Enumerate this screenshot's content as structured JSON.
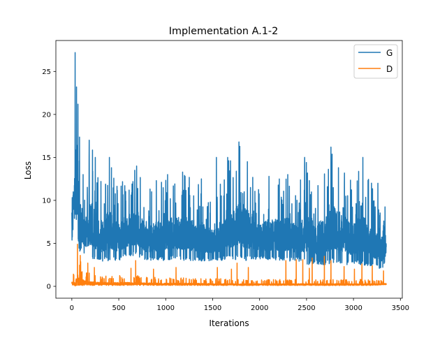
{
  "chart_data": {
    "type": "line",
    "title": "Implementation A.1-2",
    "xlabel": "Iterations",
    "ylabel": "Loss",
    "xlim": [
      -170,
      3520
    ],
    "ylim": [
      -1.38,
      28.6
    ],
    "xticks": [
      0,
      500,
      1000,
      1500,
      2000,
      2500,
      3000,
      3500
    ],
    "yticks": [
      0,
      5,
      10,
      15,
      20,
      25
    ],
    "xtick_labels": [
      "0",
      "500",
      "1000",
      "1500",
      "2000",
      "2500",
      "3000",
      "3500"
    ],
    "ytick_labels": [
      "0",
      "5",
      "10",
      "15",
      "20",
      "25"
    ],
    "grid": false,
    "legend_position": "upper right",
    "n_points": 3350,
    "series": [
      {
        "name": "G",
        "color": "#1f77b4",
        "band": [
          [
            0,
            5.0,
            9.5
          ],
          [
            20,
            7.5,
            14.0
          ],
          [
            40,
            8.0,
            27.2
          ],
          [
            60,
            5.5,
            23.2
          ],
          [
            80,
            4.0,
            21.2
          ],
          [
            100,
            4.0,
            13.0
          ],
          [
            150,
            3.5,
            12.5
          ],
          [
            200,
            3.2,
            17.0
          ],
          [
            300,
            2.8,
            12.2
          ],
          [
            400,
            3.0,
            15.0
          ],
          [
            500,
            3.0,
            11.5
          ],
          [
            600,
            3.5,
            13.5
          ],
          [
            700,
            3.5,
            14.0
          ],
          [
            800,
            3.0,
            11.0
          ],
          [
            900,
            3.0,
            12.3
          ],
          [
            1000,
            3.0,
            13.0
          ],
          [
            1100,
            3.2,
            12.7
          ],
          [
            1200,
            3.0,
            13.3
          ],
          [
            1300,
            3.0,
            12.5
          ],
          [
            1400,
            2.9,
            12.0
          ],
          [
            1500,
            3.0,
            10.0
          ],
          [
            1600,
            3.0,
            12.5
          ],
          [
            1650,
            3.0,
            15.0
          ],
          [
            1700,
            3.2,
            14.6
          ],
          [
            1800,
            3.0,
            16.8
          ],
          [
            1900,
            3.0,
            14.5
          ],
          [
            2000,
            3.2,
            11.0
          ],
          [
            2100,
            3.0,
            12.8
          ],
          [
            2200,
            3.0,
            12.5
          ],
          [
            2300,
            2.9,
            13.0
          ],
          [
            2400,
            3.0,
            11.2
          ],
          [
            2500,
            2.5,
            15.0
          ],
          [
            2600,
            2.6,
            12.0
          ],
          [
            2700,
            2.5,
            13.5
          ],
          [
            2800,
            2.8,
            16.2
          ],
          [
            2900,
            2.5,
            13.8
          ],
          [
            3000,
            2.5,
            12.0
          ],
          [
            3100,
            2.5,
            15.0
          ],
          [
            3200,
            2.2,
            12.0
          ],
          [
            3300,
            2.0,
            9.5
          ],
          [
            3350,
            2.8,
            9.4
          ]
        ],
        "peaks": [
          [
            35,
            27.2
          ],
          [
            50,
            23.2
          ],
          [
            65,
            21.2
          ],
          [
            120,
            13.0
          ],
          [
            185,
            17.0
          ],
          [
            250,
            15.0
          ],
          [
            310,
            12.2
          ],
          [
            400,
            15.0
          ],
          [
            670,
            13.5
          ],
          [
            690,
            14.0
          ],
          [
            850,
            11.0
          ],
          [
            900,
            12.3
          ],
          [
            1020,
            13.0
          ],
          [
            1180,
            13.3
          ],
          [
            1380,
            12.5
          ],
          [
            1540,
            15.0
          ],
          [
            1660,
            15.0
          ],
          [
            1690,
            14.6
          ],
          [
            1780,
            16.8
          ],
          [
            1870,
            14.5
          ],
          [
            2100,
            12.8
          ],
          [
            2300,
            13.0
          ],
          [
            2480,
            15.0
          ],
          [
            2530,
            12.3
          ],
          [
            2760,
            16.2
          ],
          [
            2840,
            13.8
          ],
          [
            3100,
            15.0
          ],
          [
            3260,
            12.0
          ]
        ]
      },
      {
        "name": "D",
        "color": "#ff7f0e",
        "band": [
          [
            0,
            0.2,
            1.6
          ],
          [
            20,
            0.0,
            1.5
          ],
          [
            40,
            0.0,
            2.0
          ],
          [
            60,
            0.1,
            4.9
          ],
          [
            80,
            0.1,
            3.8
          ],
          [
            100,
            0.1,
            2.8
          ],
          [
            150,
            0.1,
            1.8
          ],
          [
            200,
            0.1,
            1.6
          ],
          [
            300,
            0.1,
            1.3
          ],
          [
            400,
            0.1,
            1.2
          ],
          [
            500,
            0.1,
            1.3
          ],
          [
            600,
            0.1,
            1.3
          ],
          [
            700,
            0.1,
            1.3
          ],
          [
            800,
            0.1,
            1.1
          ],
          [
            900,
            0.1,
            1.1
          ],
          [
            1000,
            0.1,
            1.0
          ],
          [
            1200,
            0.1,
            1.0
          ],
          [
            1400,
            0.1,
            0.9
          ],
          [
            1600,
            0.1,
            0.9
          ],
          [
            1800,
            0.1,
            0.8
          ],
          [
            2000,
            0.1,
            0.8
          ],
          [
            2200,
            0.1,
            0.8
          ],
          [
            2400,
            0.1,
            0.8
          ],
          [
            2600,
            0.1,
            0.8
          ],
          [
            2800,
            0.1,
            0.8
          ],
          [
            3000,
            0.1,
            0.8
          ],
          [
            3200,
            0.1,
            0.8
          ],
          [
            3350,
            0.2,
            0.7
          ]
        ],
        "peaks": [
          [
            60,
            4.9
          ],
          [
            90,
            3.6
          ],
          [
            170,
            2.7
          ],
          [
            240,
            2.2
          ],
          [
            630,
            2.1
          ],
          [
            680,
            3.0
          ],
          [
            870,
            2.0
          ],
          [
            1110,
            2.2
          ],
          [
            1550,
            2.2
          ],
          [
            1700,
            2.0
          ],
          [
            1760,
            2.7
          ],
          [
            1880,
            2.2
          ],
          [
            2280,
            3.0
          ],
          [
            2390,
            3.1
          ],
          [
            2460,
            3.1
          ],
          [
            2530,
            2.1
          ],
          [
            2560,
            3.3
          ],
          [
            2690,
            3.5
          ],
          [
            2760,
            3.0
          ],
          [
            2900,
            2.3
          ],
          [
            3010,
            2.0
          ],
          [
            3090,
            2.6
          ],
          [
            3200,
            2.4
          ],
          [
            3320,
            1.8
          ]
        ]
      }
    ]
  }
}
